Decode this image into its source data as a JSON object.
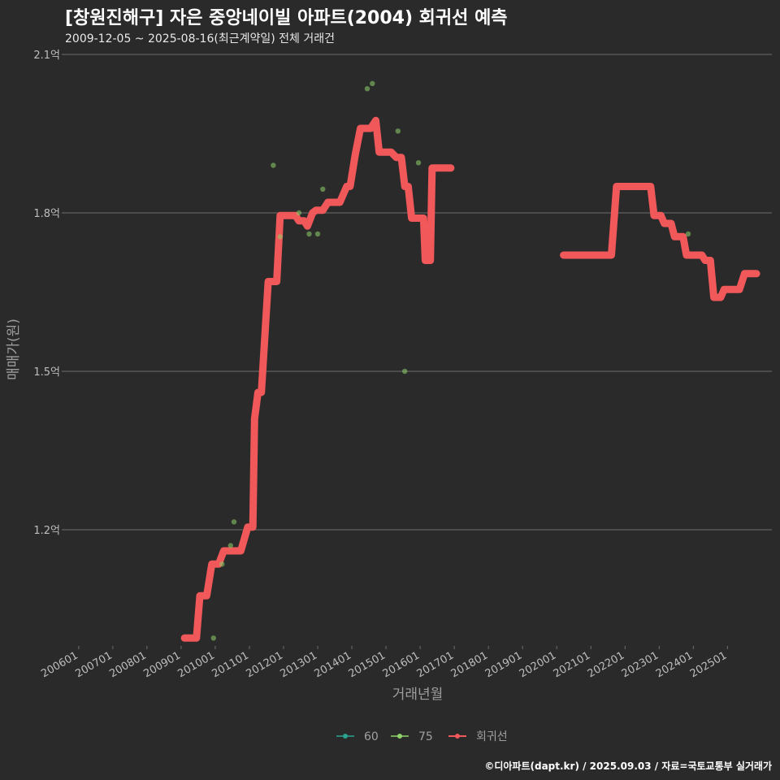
{
  "title": "[창원진해구] 자은 중앙네이빌 아파트(2004) 회귀선 예측",
  "subtitle": "2009-12-05 ~ 2025-08-16(최근계약일) 전체 거래건",
  "caption": "©디아파트(dapt.kr) / 2025.09.03 / 자료=국토교통부 실거래가",
  "colors": {
    "background": "#2b2a2b",
    "grid": "#6e6e6e",
    "line": "#f0585a",
    "s60": "#2aa38f",
    "s75": "#8ed36a"
  },
  "chart_data": {
    "type": "line",
    "xlabel": "거래년월",
    "ylabel": "매매가(원)",
    "xlim": [
      2005.6,
      2026.3
    ],
    "ylim": [
      0.98,
      2.1
    ],
    "x_ticks": [
      {
        "label": "200601",
        "x": 2006.0
      },
      {
        "label": "200701",
        "x": 2007.0
      },
      {
        "label": "200801",
        "x": 2008.0
      },
      {
        "label": "200901",
        "x": 2009.0
      },
      {
        "label": "201001",
        "x": 2010.0
      },
      {
        "label": "201101",
        "x": 2011.0
      },
      {
        "label": "201201",
        "x": 2012.0
      },
      {
        "label": "201301",
        "x": 2013.0
      },
      {
        "label": "201401",
        "x": 2014.0
      },
      {
        "label": "201501",
        "x": 2015.0
      },
      {
        "label": "201601",
        "x": 2016.0
      },
      {
        "label": "201701",
        "x": 2017.0
      },
      {
        "label": "201801",
        "x": 2018.0
      },
      {
        "label": "201901",
        "x": 2019.0
      },
      {
        "label": "202001",
        "x": 2020.0
      },
      {
        "label": "202101",
        "x": 2021.0
      },
      {
        "label": "202201",
        "x": 2022.0
      },
      {
        "label": "202301",
        "x": 2023.0
      },
      {
        "label": "202401",
        "x": 2024.0
      },
      {
        "label": "202501",
        "x": 2025.0
      }
    ],
    "y_ticks": [
      {
        "label": "1.2억",
        "value": 1.2
      },
      {
        "label": "1.5억",
        "value": 1.5
      },
      {
        "label": "1.8억",
        "value": 1.8
      },
      {
        "label": "2.1억",
        "value": 2.1
      }
    ],
    "legend": [
      {
        "name": "60",
        "kind": "point",
        "color": "#2aa38f"
      },
      {
        "name": "75",
        "kind": "point",
        "color": "#8ed36a"
      },
      {
        "name": "회귀선",
        "kind": "line",
        "color": "#f0585a"
      }
    ],
    "series": [
      {
        "name": "60",
        "points": []
      },
      {
        "name": "75",
        "points": [
          [
            2009.95,
            0.995
          ],
          [
            2010.2,
            1.135
          ],
          [
            2010.45,
            1.17
          ],
          [
            2010.55,
            1.215
          ],
          [
            2011.7,
            1.89
          ],
          [
            2011.9,
            1.755
          ],
          [
            2012.45,
            1.8
          ],
          [
            2012.75,
            1.76
          ],
          [
            2013.0,
            1.76
          ],
          [
            2013.15,
            1.845
          ],
          [
            2014.45,
            2.035
          ],
          [
            2014.6,
            2.045
          ],
          [
            2015.35,
            1.955
          ],
          [
            2015.55,
            1.5
          ],
          [
            2015.95,
            1.895
          ],
          [
            2023.85,
            1.76
          ]
        ]
      },
      {
        "name": "회귀선",
        "segments": [
          [
            [
              2009.1,
              0.995
            ],
            [
              2009.45,
              0.995
            ],
            [
              2009.55,
              1.075
            ],
            [
              2009.75,
              1.075
            ],
            [
              2009.9,
              1.135
            ],
            [
              2010.1,
              1.135
            ],
            [
              2010.25,
              1.16
            ],
            [
              2010.75,
              1.16
            ],
            [
              2010.95,
              1.205
            ],
            [
              2011.1,
              1.205
            ],
            [
              2011.15,
              1.41
            ],
            [
              2011.25,
              1.46
            ],
            [
              2011.35,
              1.46
            ],
            [
              2011.55,
              1.67
            ],
            [
              2011.8,
              1.67
            ],
            [
              2011.9,
              1.795
            ],
            [
              2012.35,
              1.795
            ],
            [
              2012.45,
              1.785
            ],
            [
              2012.6,
              1.785
            ],
            [
              2012.7,
              1.775
            ],
            [
              2012.85,
              1.8
            ],
            [
              2012.95,
              1.805
            ],
            [
              2013.15,
              1.805
            ],
            [
              2013.3,
              1.82
            ],
            [
              2013.65,
              1.82
            ],
            [
              2013.85,
              1.85
            ],
            [
              2013.95,
              1.85
            ],
            [
              2014.1,
              1.91
            ],
            [
              2014.25,
              1.96
            ],
            [
              2014.55,
              1.96
            ],
            [
              2014.7,
              1.975
            ],
            [
              2014.8,
              1.915
            ],
            [
              2015.15,
              1.915
            ],
            [
              2015.3,
              1.905
            ],
            [
              2015.45,
              1.905
            ],
            [
              2015.55,
              1.85
            ],
            [
              2015.65,
              1.85
            ],
            [
              2015.75,
              1.79
            ],
            [
              2016.1,
              1.79
            ],
            [
              2016.15,
              1.71
            ],
            [
              2016.3,
              1.71
            ],
            [
              2016.35,
              1.885
            ],
            [
              2016.9,
              1.885
            ]
          ],
          [
            [
              2020.2,
              1.72
            ],
            [
              2021.6,
              1.72
            ],
            [
              2021.75,
              1.85
            ],
            [
              2022.75,
              1.85
            ],
            [
              2022.85,
              1.795
            ],
            [
              2023.05,
              1.795
            ],
            [
              2023.15,
              1.78
            ],
            [
              2023.35,
              1.78
            ],
            [
              2023.45,
              1.755
            ],
            [
              2023.7,
              1.755
            ],
            [
              2023.8,
              1.72
            ],
            [
              2024.25,
              1.72
            ],
            [
              2024.35,
              1.71
            ],
            [
              2024.5,
              1.71
            ],
            [
              2024.6,
              1.64
            ],
            [
              2024.8,
              1.64
            ],
            [
              2024.9,
              1.655
            ],
            [
              2025.35,
              1.655
            ],
            [
              2025.5,
              1.685
            ],
            [
              2025.85,
              1.685
            ]
          ]
        ]
      }
    ]
  }
}
